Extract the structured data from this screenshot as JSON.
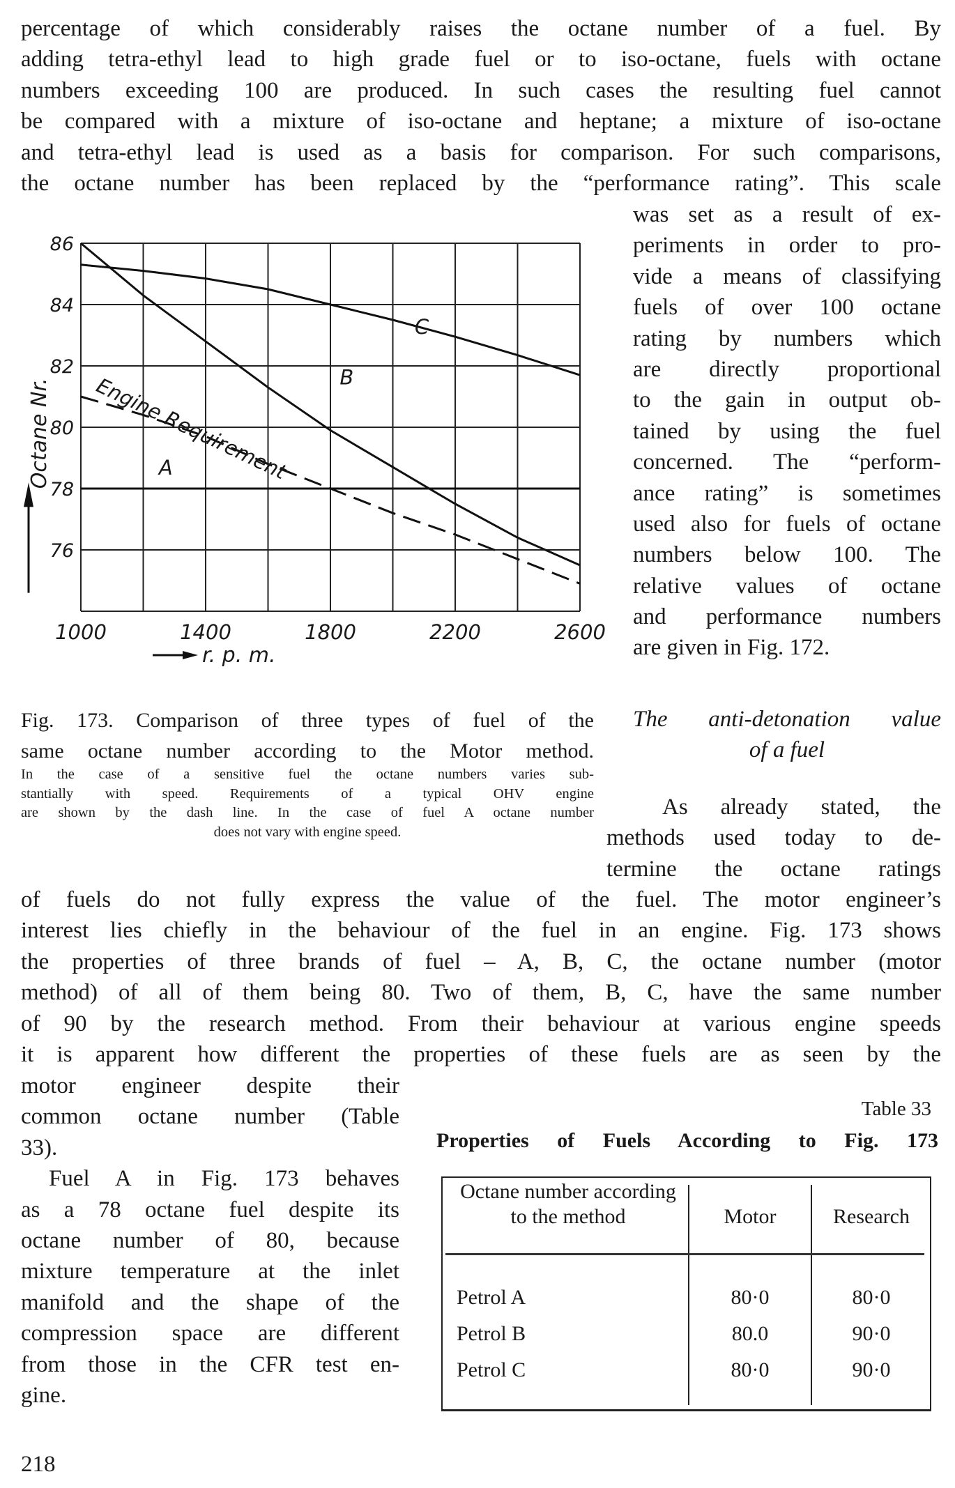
{
  "top_paragraph": [
    "percentage of which considerably raises the octane number of a fuel. By",
    "adding tetra-ethyl lead to high grade fuel or to iso-octane, fuels with octane",
    "numbers exceeding 100 are produced. In such cases the resulting fuel cannot",
    "be compared with a mixture of iso-octane and heptane; a mixture of iso-octane",
    "and tetra-ethyl lead is used as a basis for comparison. For such comparisons,",
    "the octane number has been replaced by the “performance rating”. This scale"
  ],
  "right_column": [
    "was set as a result of ex-",
    "periments in order to pro-",
    "vide a means of classifying",
    "fuels of over 100 octane",
    "rating by numbers which",
    "are directly proportional",
    "to the gain in output ob-",
    "tained by using the fuel",
    "concerned. The “perform-",
    "ance rating” is sometimes",
    "used also for fuels of octane",
    "numbers below 100. The",
    "relative values of octane",
    "and performance numbers",
    "are given in Fig. 172."
  ],
  "section_heading": [
    "The anti-detonation value",
    "of a fuel"
  ],
  "section_start": [
    "As already stated, the",
    "methods used today to de-",
    "termine the octane ratings"
  ],
  "full_width": [
    "of fuels do not fully express the value of the fuel. The motor engineer’s",
    "interest lies chiefly in the behaviour of the fuel in an engine. Fig. 173 shows",
    "the properties of three brands of fuel – A, B, C, the octane number (motor",
    "method) of all of them being 80. Two of them, B, C, have the same number",
    "of 90 by the research method. From their behaviour at various engine speeds",
    "it is apparent how different the properties of these fuels are as seen by the"
  ],
  "left_column": [
    "motor engineer despite their",
    "common octane number (Table",
    "33).",
    "Fuel A in Fig. 173 behaves",
    "as a 78 octane fuel despite its",
    "octane number of 80, because",
    "mixture temperature at the inlet",
    "manifold and the shape of the",
    "compression space are different",
    "from those in the CFR test en-",
    "gine."
  ],
  "figure_caption": {
    "title_lines": [
      "Fig. 173. Comparison of three types of fuel of the",
      "same octane number according to the Motor method."
    ],
    "note_lines": [
      "In the case of a sensitive fuel the octane numbers varies sub-",
      "stantially with speed. Requirements of a typical OHV engine",
      "are shown by the dash line. In the case of fuel A octane number",
      "does not vary with engine speed."
    ]
  },
  "table": {
    "number": "Table 33",
    "title": "Properties of Fuels According to Fig. 173",
    "header": [
      "Octane number according to the method",
      "Motor",
      "Research"
    ],
    "rows": [
      [
        "Petrol A",
        "80·0",
        "80·0"
      ],
      [
        "Petrol B",
        "80.0",
        "90·0"
      ],
      [
        "Petrol C",
        "80·0",
        "90·0"
      ]
    ]
  },
  "page_number": "218",
  "chart_data": {
    "type": "line",
    "xlabel": "r. p. m.",
    "ylabel": "Octane Nr.",
    "xlim": [
      1000,
      2600
    ],
    "ylim": [
      74,
      86
    ],
    "x_ticks": [
      "1000",
      "1400",
      "1800",
      "2200",
      "2600"
    ],
    "y_ticks": [
      "76",
      "78",
      "80",
      "82",
      "84",
      "86"
    ],
    "grid": true,
    "x": [
      1000,
      1200,
      1400,
      1600,
      1800,
      2000,
      2200,
      2400,
      2600
    ],
    "series": [
      {
        "name": "A",
        "style": "solid",
        "values": [
          78,
          78,
          78,
          78,
          78,
          78,
          78,
          78,
          78
        ]
      },
      {
        "name": "B",
        "style": "solid",
        "values": [
          86,
          84.3,
          82.8,
          81.3,
          79.9,
          78.7,
          77.5,
          76.4,
          75.5
        ]
      },
      {
        "name": "C",
        "style": "solid",
        "values": [
          85.3,
          85.1,
          84.85,
          84.5,
          84.0,
          83.5,
          82.95,
          82.35,
          81.7
        ]
      },
      {
        "name": "Engine Requirement",
        "style": "dashed",
        "values": [
          81,
          80.4,
          79.7,
          78.8,
          78.0,
          77.2,
          76.5,
          75.7,
          74.9
        ]
      }
    ]
  }
}
